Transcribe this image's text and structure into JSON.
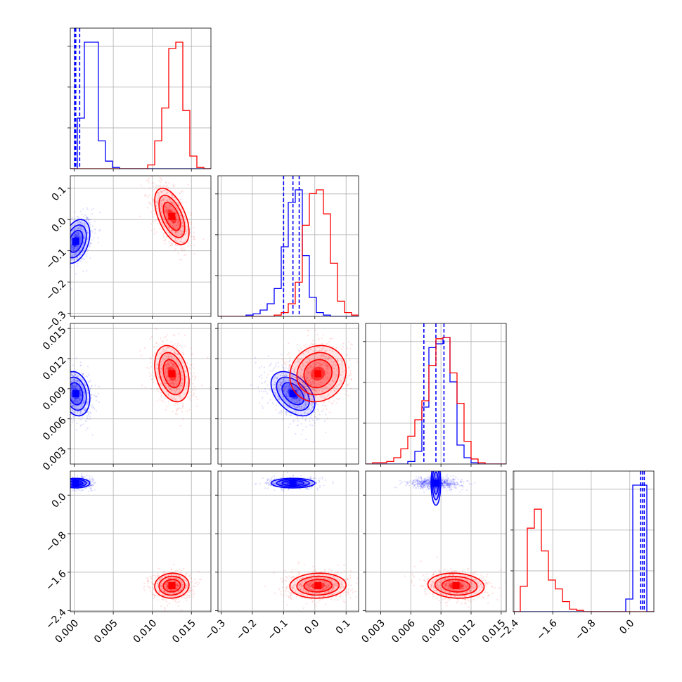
{
  "chart_data": {
    "type": "scatter",
    "subtype": "corner",
    "grid": true,
    "parameters": [
      {
        "range": [
          -0.0005,
          0.0175
        ],
        "ticks": [
          0.0,
          0.005,
          0.01,
          0.015
        ],
        "tick_labels": [
          "0.000",
          "0.005",
          "0.010",
          "0.015"
        ]
      },
      {
        "range": [
          -0.31,
          0.14
        ],
        "ticks": [
          -0.3,
          -0.2,
          -0.1,
          0.0,
          0.1
        ],
        "tick_labels": [
          "−0.3",
          "−0.2",
          "−0.1",
          "0.0",
          "0.1"
        ]
      },
      {
        "range": [
          0.0015,
          0.0155
        ],
        "ticks": [
          0.003,
          0.006,
          0.009,
          0.012,
          0.015
        ],
        "tick_labels": [
          "0.003",
          "0.006",
          "0.009",
          "0.012",
          "0.015"
        ]
      },
      {
        "range": [
          -2.42,
          0.5
        ],
        "ticks": [
          -2.4,
          -1.6,
          -0.8,
          0.0
        ],
        "tick_labels": [
          "−2.4",
          "−1.6",
          "−0.8",
          "0.0"
        ]
      }
    ],
    "series": [
      {
        "color": "#0000ff",
        "means": [
          0.0002,
          -0.07,
          0.0085,
          0.25
        ],
        "sds": [
          0.0009,
          0.035,
          0.0011,
          0.05
        ],
        "corr": {
          "0-1": 0.35,
          "0-2": -0.2,
          "1-2": -0.45,
          "0-3": 0.0,
          "1-3": 0.0,
          "2-3": 0.0
        },
        "hist": [
          [
            0,
            0.4,
            1.0,
            1.0,
            0.22,
            0.06,
            0.01,
            0,
            0,
            0,
            0,
            0,
            0,
            0,
            0,
            0,
            0,
            0,
            0,
            0
          ],
          [
            0,
            0,
            0,
            0,
            0.01,
            0.02,
            0.05,
            0.1,
            0.22,
            0.55,
            0.9,
            1.0,
            0.48,
            0.15,
            0.03,
            0.01,
            0,
            0,
            0,
            0
          ],
          [
            0,
            0,
            0,
            0,
            0,
            0,
            0.02,
            0.1,
            0.45,
            0.92,
            0.95,
            1.0,
            0.65,
            0.15,
            0.05,
            0.01,
            0,
            0,
            0,
            0
          ],
          [
            0,
            0,
            0,
            0,
            0,
            0,
            0,
            0,
            0,
            0,
            0,
            0,
            0,
            0,
            0,
            0,
            0.1,
            1.0,
            1.0,
            0
          ]
        ],
        "quantile_lines": [
          [
            5e-05,
            0.0002,
            0.0007
          ],
          [
            -0.1,
            -0.07,
            -0.05
          ],
          [
            0.0073,
            0.0085,
            0.0093
          ],
          [
            0.22,
            0.26,
            0.3
          ]
        ]
      },
      {
        "color": "#ff0000",
        "means": [
          0.0125,
          0.01,
          0.0105,
          -1.88
        ],
        "sds": [
          0.0011,
          0.045,
          0.0014,
          0.13
        ],
        "corr": {
          "0-1": -0.55,
          "0-2": -0.3,
          "1-2": 0.1,
          "0-3": 0.05,
          "1-3": 0.05,
          "2-3": -0.1
        },
        "hist": [
          [
            0,
            0,
            0,
            0,
            0,
            0,
            0,
            0,
            0,
            0,
            0,
            0.03,
            0.22,
            0.48,
            0.95,
            1.0,
            0.46,
            0.1,
            0.01,
            0
          ],
          [
            0,
            0,
            0,
            0,
            0,
            0,
            0,
            0,
            0.01,
            0.03,
            0.1,
            0.27,
            0.72,
            0.97,
            1.0,
            0.81,
            0.42,
            0.12,
            0.03,
            0.01
          ],
          [
            0,
            0.01,
            0.01,
            0.02,
            0.05,
            0.12,
            0.22,
            0.35,
            0.5,
            0.78,
            0.99,
            1.0,
            0.72,
            0.48,
            0.18,
            0.04,
            0.01,
            0,
            0,
            0
          ],
          [
            0,
            0.2,
            0.66,
            0.81,
            0.48,
            0.25,
            0.18,
            0.08,
            0.02,
            0.01,
            0,
            0,
            0,
            0,
            0,
            0,
            0,
            0,
            0,
            0
          ]
        ]
      }
    ]
  }
}
